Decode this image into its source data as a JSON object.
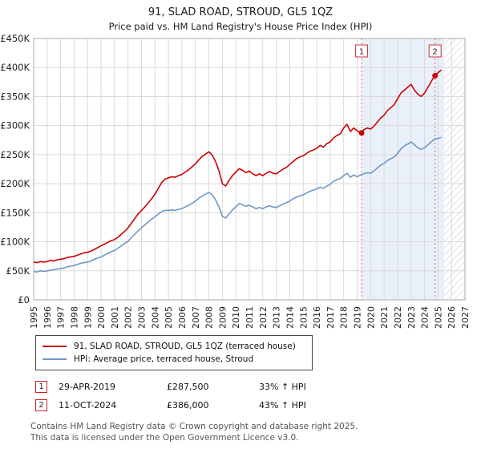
{
  "chart_data": {
    "type": "line",
    "title": "91, SLAD ROAD, STROUD, GL5 1QZ",
    "subtitle": "Price paid vs. HM Land Registry's House Price Index (HPI)",
    "xlim": [
      1995,
      2027
    ],
    "ylim": [
      0,
      450000
    ],
    "y_ticks": [
      "£0",
      "£50K",
      "£100K",
      "£150K",
      "£200K",
      "£250K",
      "£300K",
      "£350K",
      "£400K",
      "£450K"
    ],
    "y_tick_step_k": 50,
    "x_start": 1995,
    "x_step": 0.25,
    "grid": true,
    "legend_position": "below",
    "colors": {
      "red_line": "#cc0000",
      "blue_line": "#6f97c5",
      "shade": "#e9f0fa",
      "dashed_marker_line": "#dd6666",
      "grid": "#d9d9d9"
    },
    "series": [
      {
        "name": "91, SLAD ROAD, STROUD, GL5 1QZ (terraced house)",
        "color": "#cc0000",
        "values_k": [
          65,
          64,
          66,
          65,
          66,
          68,
          67,
          69,
          70,
          71,
          73,
          74,
          75,
          77,
          79,
          81,
          82,
          84,
          87,
          90,
          93,
          96,
          99,
          102,
          104,
          108,
          113,
          118,
          124,
          132,
          140,
          148,
          154,
          160,
          167,
          174,
          182,
          192,
          202,
          208,
          210,
          212,
          211,
          214,
          216,
          220,
          224,
          229,
          234,
          241,
          247,
          251,
          255,
          249,
          238,
          222,
          200,
          196,
          206,
          214,
          220,
          226,
          223,
          219,
          222,
          217,
          214,
          217,
          214,
          218,
          221,
          218,
          217,
          221,
          225,
          228,
          233,
          238,
          243,
          246,
          248,
          252,
          256,
          258,
          261,
          266,
          263,
          269,
          272,
          279,
          283,
          286,
          296,
          302,
          290,
          296,
          291,
          288,
          293,
          296,
          294,
          299,
          306,
          313,
          318,
          326,
          331,
          336,
          346,
          356,
          361,
          366,
          371,
          361,
          354,
          350,
          356,
          366,
          376,
          386,
          391,
          396
        ]
      },
      {
        "name": "HPI: Average price, terraced house, Stroud",
        "color": "#6f97c5",
        "values_k": [
          49,
          48,
          50,
          49,
          50,
          51,
          52,
          53,
          54,
          55,
          57,
          58,
          59,
          61,
          63,
          64,
          65,
          67,
          70,
          72,
          74,
          77,
          80,
          83,
          85,
          89,
          93,
          97,
          101,
          107,
          113,
          119,
          124,
          129,
          134,
          139,
          143,
          148,
          152,
          154,
          154,
          155,
          154,
          156,
          157,
          160,
          163,
          166,
          170,
          175,
          179,
          182,
          185,
          181,
          172,
          160,
          144,
          141,
          148,
          155,
          160,
          166,
          164,
          161,
          163,
          160,
          157,
          159,
          157,
          160,
          162,
          160,
          159,
          162,
          165,
          167,
          170,
          174,
          177,
          179,
          181,
          184,
          187,
          189,
          191,
          194,
          192,
          196,
          199,
          204,
          207,
          209,
          214,
          218,
          211,
          215,
          212,
          215,
          217,
          219,
          218,
          222,
          227,
          232,
          235,
          240,
          243,
          246,
          252,
          260,
          265,
          268,
          272,
          267,
          262,
          259,
          262,
          267,
          272,
          277,
          278,
          280
        ]
      }
    ],
    "markers": [
      {
        "label": "1",
        "x": 2019.33,
        "value_k": 287.5
      },
      {
        "label": "2",
        "x": 2024.78,
        "value_k": 386
      }
    ],
    "shaded_region": {
      "from": 2019.33,
      "to": 2025.45
    },
    "hatched_region": {
      "from": 2025.45,
      "to": 2027
    }
  },
  "transactions": [
    {
      "num": "1",
      "date": "29-APR-2019",
      "price": "£287,500",
      "hpi": "33% ↑ HPI"
    },
    {
      "num": "2",
      "date": "11-OCT-2024",
      "price": "£386,000",
      "hpi": "43% ↑ HPI"
    }
  ],
  "footer": {
    "line1": "Contains HM Land Registry data © Crown copyright and database right 2025.",
    "line2": "This data is licensed under the Open Government Licence v3.0."
  }
}
